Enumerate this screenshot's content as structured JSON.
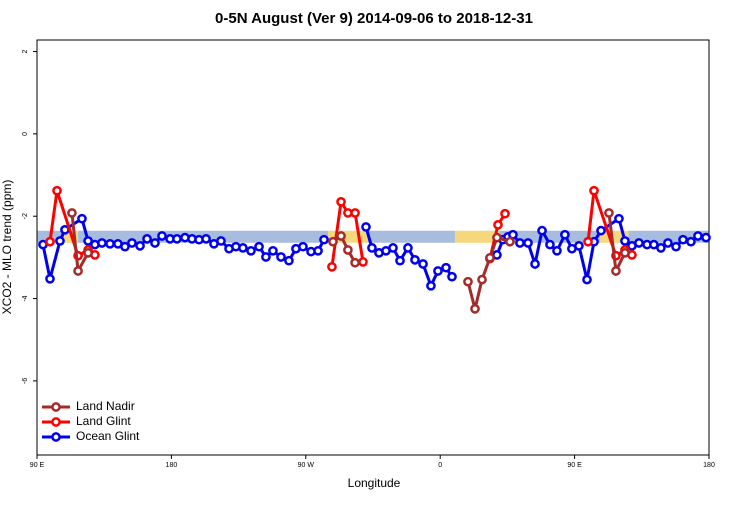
{
  "chart_data": {
    "type": "line",
    "title": "0-5N August (Ver 9)   2014-09-06 to 2018-12-31",
    "xlabel": "Longitude",
    "ylabel": "XCO2 - MLO trend (ppm)",
    "xlim": [
      90,
      540
    ],
    "xticks": [
      {
        "value": 90,
        "label": "90 E"
      },
      180,
      {
        "value": 270,
        "label": "90 W"
      },
      {
        "value": 360,
        "label": "0"
      },
      {
        "value": 450,
        "label": "90 E"
      },
      {
        "value": 540,
        "label": "180"
      }
    ],
    "ylim": [
      -7.8,
      2.28
    ],
    "yticks": [
      2,
      0,
      -2,
      -4,
      -6
    ],
    "legend": "bottom-left",
    "band": {
      "y": -2.5,
      "segments": [
        {
          "from": 90,
          "to": 106.7,
          "color": "#a7bcdf"
        },
        {
          "from": 106.7,
          "to": 117.5,
          "color": "#f6d77c"
        },
        {
          "from": 117.5,
          "to": 284.9,
          "color": "#a7bcdf"
        },
        {
          "from": 284.9,
          "to": 311.7,
          "color": "#f6d77c"
        },
        {
          "from": 311.7,
          "to": 370,
          "color": "#a7bcdf"
        },
        {
          "from": 370,
          "to": 400,
          "color": "#f6d77c"
        },
        {
          "from": 400,
          "to": 467,
          "color": "#a7bcdf"
        },
        {
          "from": 467,
          "to": 486,
          "color": "#f6d77c"
        },
        {
          "from": 486,
          "to": 540,
          "color": "#a7bcdf"
        }
      ]
    },
    "series": [
      {
        "name": "Land Nadir",
        "color": "#a52a2a",
        "x": [
          113.4,
          117.5,
          124.2,
          null,
          288.2,
          293.6,
          298.2,
          303.0,
          null,
          378.6,
          383.3,
          388.0,
          393.3,
          398.0,
          406.7,
          null,
          473.0,
          477.7,
          483.7
        ],
        "values": [
          -1.92,
          -3.33,
          -2.89,
          null,
          -2.62,
          -2.48,
          -2.82,
          -3.13,
          null,
          -3.59,
          -4.25,
          -3.54,
          -3.01,
          -2.52,
          -2.62,
          null,
          -1.92,
          -3.33,
          -2.89
        ]
      },
      {
        "name": "Land Glint",
        "color": "#ff0000",
        "x": [
          98.7,
          103.4,
          117.5,
          124.2,
          128.8,
          null,
          287.5,
          293.6,
          298.2,
          303.0,
          308.3,
          null,
          393.3,
          398.7,
          403.4,
          null,
          459.0,
          463.0,
          477.7,
          483.7,
          488.4
        ],
        "values": [
          -2.62,
          -1.38,
          -2.96,
          -2.82,
          -2.94,
          null,
          -3.23,
          -1.65,
          -1.92,
          -1.92,
          -3.11,
          null,
          -3.03,
          -2.21,
          -1.94,
          null,
          -2.62,
          -1.38,
          -2.96,
          -2.82,
          -2.94
        ]
      },
      {
        "name": "Ocean Glint",
        "color": "#0000ee",
        "x": [
          94.0,
          98.7,
          105.4,
          108.7,
          120.1,
          124.2,
          128.8,
          133.5,
          138.9,
          144.2,
          148.9,
          153.6,
          159.0,
          163.7,
          169.0,
          173.7,
          179.1,
          183.7,
          189.1,
          193.8,
          198.5,
          203.2,
          208.5,
          213.2,
          218.6,
          223.2,
          227.9,
          233.3,
          238.7,
          243.3,
          248.0,
          253.4,
          258.7,
          263.4,
          268.1,
          273.5,
          278.2,
          282.2,
          null,
          310.3,
          314.3,
          319.0,
          323.7,
          328.4,
          333.1,
          338.4,
          343.1,
          348.5,
          353.8,
          358.5,
          363.9,
          367.9,
          null,
          398.0,
          402.0,
          405.4,
          408.7,
          413.4,
          418.8,
          423.5,
          428.2,
          433.5,
          438.2,
          443.5,
          448.2,
          452.9,
          458.3,
          463.0,
          467.7,
          479.7,
          483.7,
          488.4,
          493.1,
          498.5,
          503.1,
          507.8,
          512.5,
          517.9,
          522.6,
          527.9,
          532.6,
          538.0
        ],
        "values": [
          -2.69,
          -3.52,
          -2.6,
          -2.33,
          -2.06,
          -2.6,
          -2.69,
          -2.65,
          -2.67,
          -2.67,
          -2.74,
          -2.65,
          -2.72,
          -2.55,
          -2.65,
          -2.48,
          -2.55,
          -2.55,
          -2.52,
          -2.55,
          -2.57,
          -2.55,
          -2.67,
          -2.6,
          -2.79,
          -2.74,
          -2.77,
          -2.84,
          -2.74,
          -2.99,
          -2.84,
          -2.99,
          -3.08,
          -2.79,
          -2.74,
          -2.86,
          -2.84,
          -2.57,
          null,
          -2.26,
          -2.77,
          -2.89,
          -2.84,
          -2.77,
          -3.08,
          -2.77,
          -3.06,
          -3.16,
          -3.69,
          -3.33,
          -3.25,
          -3.47,
          null,
          -2.94,
          -2.57,
          -2.5,
          -2.45,
          -2.65,
          -2.65,
          -3.16,
          -2.35,
          -2.69,
          -2.84,
          -2.45,
          -2.79,
          -2.72,
          -3.54,
          -2.62,
          -2.35,
          -2.06,
          -2.6,
          -2.72,
          -2.65,
          -2.69,
          -2.69,
          -2.77,
          -2.65,
          -2.74,
          -2.57,
          -2.62,
          -2.48,
          -2.52
        ]
      }
    ]
  }
}
